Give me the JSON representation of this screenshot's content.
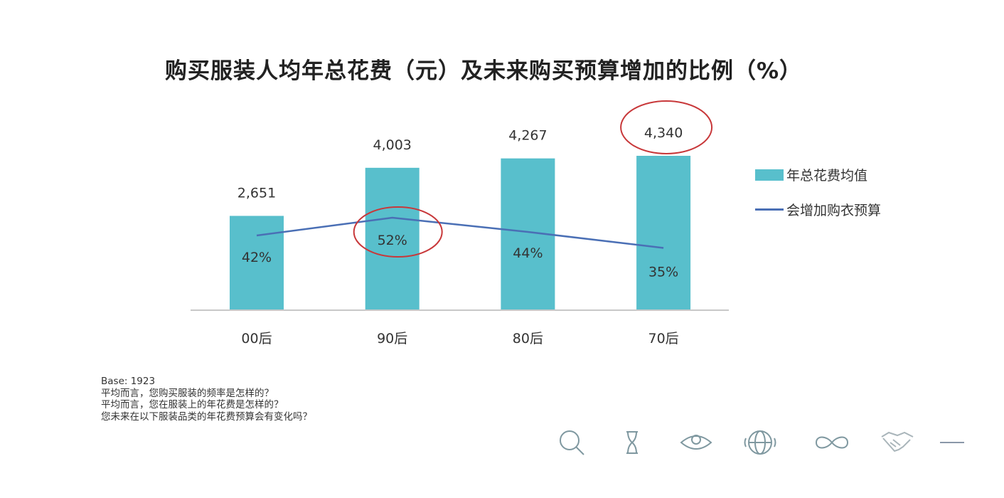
{
  "chart_data": {
    "type": "bar",
    "title": "购买服装人均年总花费（元）及未来购买预算增加的比例（%）",
    "categories": [
      "00后",
      "90后",
      "80后",
      "70后"
    ],
    "series": [
      {
        "name": "年总花费均值",
        "type": "bar",
        "values": [
          2651,
          4003,
          4267,
          4340
        ],
        "labels": [
          "2,651",
          "4,003",
          "4,267",
          "4,340"
        ],
        "color": "#58bfcc"
      },
      {
        "name": "会增加购衣预算",
        "type": "line",
        "values": [
          42,
          52,
          44,
          35
        ],
        "labels": [
          "42%",
          "52%",
          "44%",
          "35%"
        ],
        "color": "#4a6fb5"
      }
    ],
    "highlighted": [
      "4,340",
      "52%"
    ],
    "highlight_color": "#c8383a",
    "legend": "right",
    "grid": false
  },
  "notes": [
    "Base: 1923",
    "平均而言，您购买服装的频率是怎样的？",
    "平均而言，您在服装上的年花费是怎样的？",
    "您未来在以下服装品类的年花费预算会有变化吗？"
  ],
  "footer_icons": [
    "search-icon",
    "hourglass-icon",
    "eye-icon",
    "globe-icon",
    "infinity-icon",
    "handshake-icon"
  ]
}
